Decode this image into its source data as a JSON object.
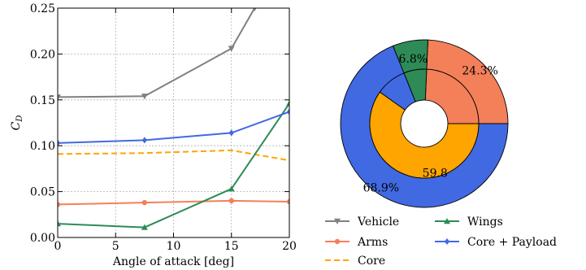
{
  "chart_data": [
    {
      "type": "line",
      "xlabel": "Angle of attack [deg]",
      "ylabel": "C",
      "ylabel_subscript": "D",
      "xlim": [
        0,
        20
      ],
      "ylim": [
        0,
        0.25
      ],
      "xticks": [
        0,
        5,
        10,
        15,
        20
      ],
      "yticks": [
        0.0,
        0.05,
        0.1,
        0.15,
        0.2,
        0.25
      ],
      "xtick_labels": [
        "0",
        "5",
        "10",
        "15",
        "20"
      ],
      "ytick_labels": [
        "0.00",
        "0.05",
        "0.10",
        "0.15",
        "0.20",
        "0.25"
      ],
      "grid": true,
      "series": [
        {
          "name": "Vehicle",
          "color": "#808080",
          "marker": "triangle-down",
          "dash": "solid",
          "x": [
            0,
            7.5,
            15,
            17
          ],
          "y": [
            0.153,
            0.154,
            0.206,
            0.25
          ]
        },
        {
          "name": "Arms",
          "color": "#f4805a",
          "marker": "circle",
          "dash": "solid",
          "x": [
            0,
            7.5,
            15,
            20
          ],
          "y": [
            0.036,
            0.038,
            0.04,
            0.039
          ]
        },
        {
          "name": "Core",
          "color": "#ffa500",
          "marker": "none",
          "dash": "dashed",
          "x": [
            0,
            7.5,
            15,
            20
          ],
          "y": [
            0.091,
            0.092,
            0.095,
            0.084
          ]
        },
        {
          "name": "Wings",
          "color": "#2e8b57",
          "marker": "triangle-up",
          "dash": "solid",
          "x": [
            0,
            7.5,
            15,
            20
          ],
          "y": [
            0.015,
            0.011,
            0.053,
            0.146
          ]
        },
        {
          "name": "Core + Payload",
          "color": "#4169e1",
          "marker": "diamond",
          "dash": "solid",
          "x": [
            0,
            7.5,
            15,
            20
          ],
          "y": [
            0.103,
            0.106,
            0.114,
            0.137
          ]
        }
      ]
    },
    {
      "type": "pie",
      "variant": "nested-donut",
      "outer": [
        {
          "name": "Arms",
          "value": 24.3,
          "label": "24.3%",
          "color": "#f4805a"
        },
        {
          "name": "Wings",
          "value": 6.8,
          "label": "6.8%",
          "color": "#2e8b57"
        },
        {
          "name": "Core + Payload",
          "value": 68.9,
          "label": "68.9%",
          "color": "#4169e1"
        }
      ],
      "inner": [
        {
          "name": "Arms",
          "value": 24.3,
          "color": "#f4805a"
        },
        {
          "name": "Wings",
          "value": 6.8,
          "color": "#2e8b57"
        },
        {
          "name": "Core + Payload (payload part)",
          "value": 9.1,
          "color": "#4169e1"
        },
        {
          "name": "Core",
          "value": 59.8,
          "label": "59.8",
          "color": "#ffa500"
        }
      ]
    }
  ],
  "legend": {
    "placement": "bottom-right",
    "entries": [
      {
        "label": "Vehicle",
        "color": "#808080",
        "marker": "triangle-down",
        "dash": "solid"
      },
      {
        "label": "Wings",
        "color": "#2e8b57",
        "marker": "triangle-up",
        "dash": "solid"
      },
      {
        "label": "Arms",
        "color": "#f4805a",
        "marker": "circle",
        "dash": "solid"
      },
      {
        "label": "Core + Payload",
        "color": "#4169e1",
        "marker": "diamond",
        "dash": "solid"
      },
      {
        "label": "Core",
        "color": "#ffa500",
        "marker": "none",
        "dash": "dashed"
      }
    ]
  }
}
